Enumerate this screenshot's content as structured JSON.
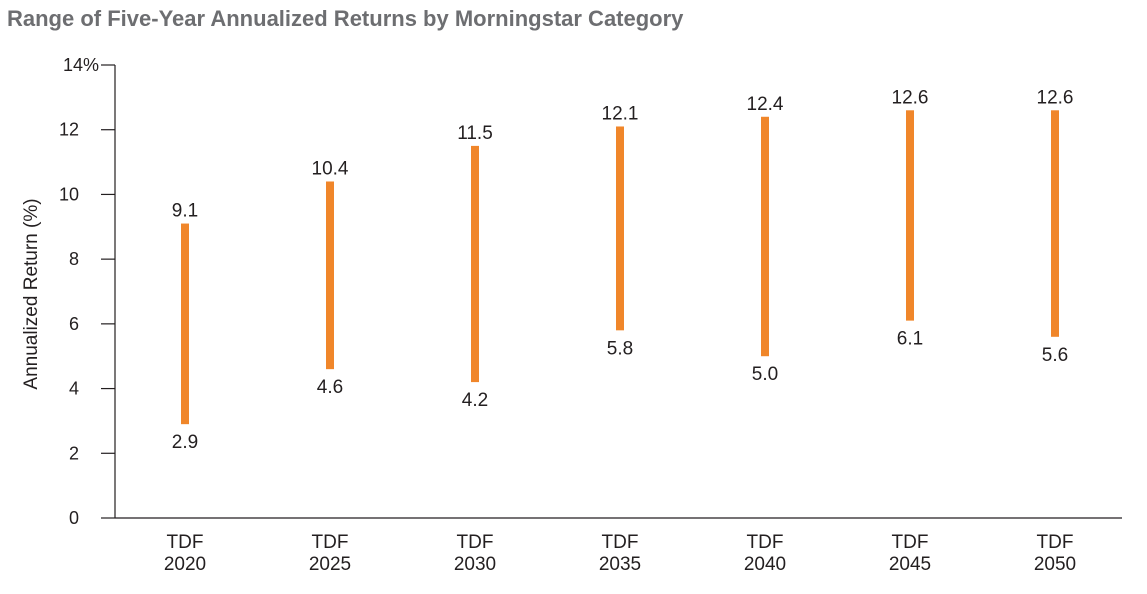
{
  "chart_data": {
    "type": "range_bar",
    "title": "Range of Five-Year Annualized Returns by Morningstar Category",
    "ylabel": "Annualized Return (%)",
    "xlabel": "",
    "ylim": [
      0,
      14
    ],
    "yticks": [
      {
        "value": 0,
        "label": "0"
      },
      {
        "value": 2,
        "label": "2"
      },
      {
        "value": 4,
        "label": "4"
      },
      {
        "value": 6,
        "label": "6"
      },
      {
        "value": 8,
        "label": "8"
      },
      {
        "value": 10,
        "label": "10"
      },
      {
        "value": 12,
        "label": "12"
      },
      {
        "value": 14,
        "label": "14%"
      }
    ],
    "grid": false,
    "bar_color": "#f0862a",
    "categories": [
      {
        "line1": "TDF",
        "line2": "2020",
        "low": 2.9,
        "high": 9.1,
        "low_label": "2.9",
        "high_label": "9.1"
      },
      {
        "line1": "TDF",
        "line2": "2025",
        "low": 4.6,
        "high": 10.4,
        "low_label": "4.6",
        "high_label": "10.4"
      },
      {
        "line1": "TDF",
        "line2": "2030",
        "low": 4.2,
        "high": 11.5,
        "low_label": "4.2",
        "high_label": "11.5"
      },
      {
        "line1": "TDF",
        "line2": "2035",
        "low": 5.8,
        "high": 12.1,
        "low_label": "5.8",
        "high_label": "12.1"
      },
      {
        "line1": "TDF",
        "line2": "2040",
        "low": 5.0,
        "high": 12.4,
        "low_label": "5.0",
        "high_label": "12.4"
      },
      {
        "line1": "TDF",
        "line2": "2045",
        "low": 6.1,
        "high": 12.6,
        "low_label": "6.1",
        "high_label": "12.6"
      },
      {
        "line1": "TDF",
        "line2": "2050",
        "low": 5.6,
        "high": 12.6,
        "low_label": "5.6",
        "high_label": "12.6"
      }
    ]
  }
}
